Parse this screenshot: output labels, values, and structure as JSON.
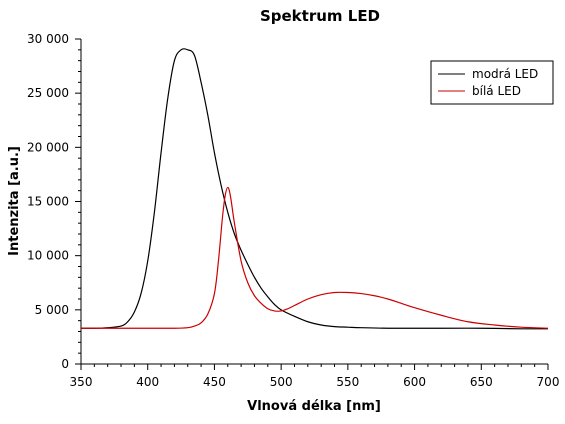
{
  "chart_data": {
    "type": "line",
    "title": "Spektrum LED",
    "xlabel": "Vlnová délka [nm]",
    "ylabel": "Intenzita [a.u.]",
    "xlim": [
      350,
      700
    ],
    "ylim": [
      0,
      30000
    ],
    "xticks": [
      350,
      400,
      450,
      500,
      550,
      600,
      650,
      700
    ],
    "xtick_labels": [
      "350",
      "400",
      "450",
      "500",
      "550",
      "600",
      "650",
      "700"
    ],
    "yticks": [
      0,
      5000,
      10000,
      15000,
      20000,
      25000,
      30000
    ],
    "ytick_labels": [
      "0",
      "5 000",
      "10 000",
      "15 000",
      "20 000",
      "25 000",
      "30 000"
    ],
    "grid": false,
    "legend_position": "top-right",
    "series": [
      {
        "name": "modrá LED",
        "color": "#000000",
        "x": [
          350,
          360,
          370,
          380,
          385,
          390,
          395,
          400,
          405,
          410,
          415,
          420,
          425,
          430,
          435,
          440,
          445,
          450,
          455,
          460,
          465,
          470,
          475,
          480,
          485,
          490,
          495,
          500,
          510,
          520,
          530,
          540,
          550,
          560,
          580,
          600,
          620,
          650,
          680,
          700
        ],
        "y": [
          3300,
          3300,
          3350,
          3500,
          3900,
          4800,
          6500,
          9500,
          14000,
          19500,
          24500,
          28000,
          29000,
          29000,
          28500,
          26000,
          23000,
          19500,
          16500,
          14000,
          12000,
          10500,
          9200,
          8000,
          7000,
          6200,
          5500,
          5000,
          4400,
          3900,
          3600,
          3450,
          3400,
          3350,
          3300,
          3300,
          3300,
          3300,
          3250,
          3250
        ]
      },
      {
        "name": "bílá LED",
        "color": "#cc0000",
        "x": [
          350,
          400,
          420,
          430,
          435,
          440,
          445,
          450,
          453,
          456,
          458,
          460,
          462,
          465,
          470,
          475,
          480,
          485,
          490,
          495,
          500,
          505,
          510,
          520,
          530,
          540,
          550,
          560,
          570,
          580,
          590,
          600,
          620,
          640,
          660,
          680,
          700
        ],
        "y": [
          3300,
          3300,
          3300,
          3350,
          3500,
          3800,
          4600,
          6500,
          9500,
          13500,
          15500,
          16300,
          15500,
          13000,
          9500,
          7500,
          6300,
          5600,
          5100,
          4900,
          4900,
          5100,
          5400,
          6000,
          6400,
          6600,
          6600,
          6500,
          6300,
          6000,
          5600,
          5200,
          4500,
          3900,
          3600,
          3400,
          3300
        ]
      }
    ]
  }
}
